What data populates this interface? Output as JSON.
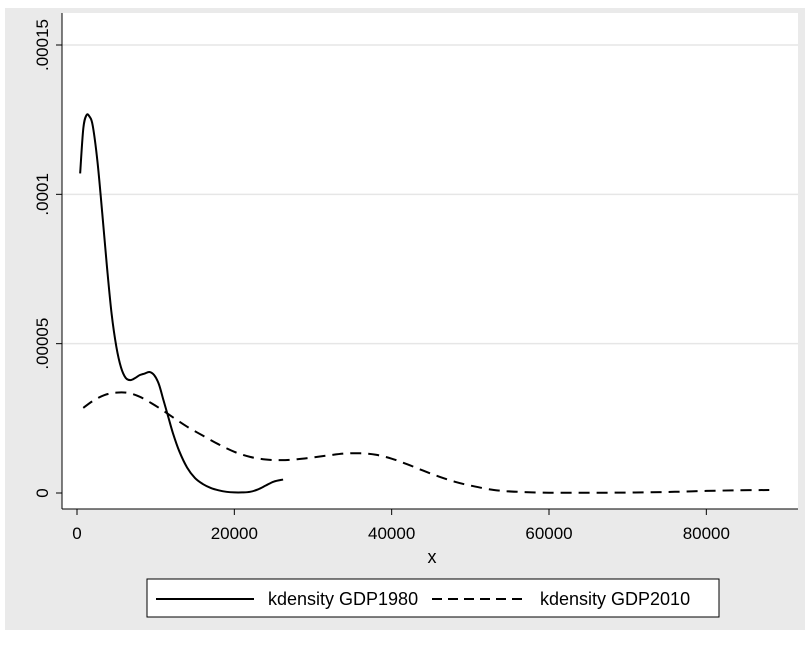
{
  "chart_data": {
    "type": "line",
    "title": "",
    "xlabel": "x",
    "ylabel": "",
    "xlim": [
      0,
      90000
    ],
    "ylim": [
      0,
      0.00015
    ],
    "x_ticks": [
      0,
      20000,
      40000,
      60000,
      80000
    ],
    "x_tick_labels": [
      "0",
      "20000",
      "40000",
      "60000",
      "80000"
    ],
    "y_ticks": [
      0,
      5e-05,
      0.0001,
      0.00015
    ],
    "y_tick_labels": [
      "0",
      ".00005",
      ".0001",
      ".00015"
    ],
    "grid": true,
    "legend_position": "bottom",
    "series": [
      {
        "name": "kdensity GDP1980",
        "style": "solid",
        "color": "#000000",
        "x": [
          400,
          800,
          1200,
          1600,
          2000,
          2600,
          3200,
          3800,
          4400,
          5000,
          5600,
          6200,
          6800,
          7400,
          8000,
          8600,
          9200,
          9800,
          10400,
          11000,
          11600,
          12200,
          13000,
          14000,
          15000,
          16000,
          17000,
          18000,
          19000,
          20000,
          21000,
          22000,
          23000,
          24000,
          25000,
          26200
        ],
        "y": [
          0.000107,
          0.000122,
          0.0001265,
          0.000126,
          0.000123,
          0.000111,
          9.4e-05,
          7.6e-05,
          6e-05,
          4.9e-05,
          4.2e-05,
          3.85e-05,
          3.78e-05,
          3.85e-05,
          3.95e-05,
          4e-05,
          4.05e-05,
          3.95e-05,
          3.65e-05,
          3.1e-05,
          2.55e-05,
          2e-05,
          1.4e-05,
          8.5e-06,
          5e-06,
          3e-06,
          1.7e-06,
          9e-07,
          4e-07,
          2e-07,
          2e-07,
          4e-07,
          1.2e-06,
          2.5e-06,
          3.8e-06,
          4.5e-06
        ]
      },
      {
        "name": "kdensity GDP2010",
        "style": "dashed",
        "color": "#000000",
        "x": [
          800,
          2000,
          3500,
          5000,
          6500,
          8000,
          9500,
          11000,
          12500,
          14000,
          16000,
          18000,
          20000,
          22000,
          24000,
          26000,
          28000,
          30000,
          32000,
          34000,
          36000,
          38000,
          40000,
          42000,
          44000,
          46000,
          48000,
          50000,
          53000,
          56000,
          60000,
          64000,
          68000,
          72000,
          76000,
          80000,
          84000,
          88000
        ],
        "y": [
          2.85e-05,
          3.08e-05,
          3.28e-05,
          3.36e-05,
          3.35e-05,
          3.22e-05,
          3e-05,
          2.75e-05,
          2.48e-05,
          2.22e-05,
          1.92e-05,
          1.63e-05,
          1.38e-05,
          1.21e-05,
          1.12e-05,
          1.1e-05,
          1.13e-05,
          1.19e-05,
          1.26e-05,
          1.32e-05,
          1.33e-05,
          1.28e-05,
          1.15e-05,
          9.6e-06,
          7.5e-06,
          5.5e-06,
          3.8e-06,
          2.5e-06,
          1e-06,
          4e-07,
          1e-07,
          1e-07,
          1e-07,
          2e-07,
          4e-07,
          7e-07,
          9e-07,
          1e-06
        ]
      }
    ]
  }
}
